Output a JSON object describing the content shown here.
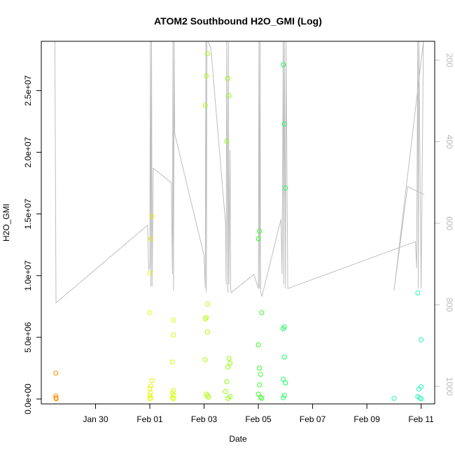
{
  "chart_data": {
    "type": "scatter",
    "title": "ATOM2 Southbound H2O_GMI (Log)",
    "xlabel": "Date",
    "ylabel": "H2O_GMI",
    "xlim": [
      "2017-01-28T00:00",
      "2017-02-11T12:00"
    ],
    "ylim": [
      0,
      29000000
    ],
    "y2lim": [
      1050,
      150
    ],
    "x_ticks": [
      {
        "value": "2017-01-30T00:00",
        "label": "Jan 30"
      },
      {
        "value": "2017-02-01T00:00",
        "label": "Feb 01"
      },
      {
        "value": "2017-02-03T00:00",
        "label": "Feb 03"
      },
      {
        "value": "2017-02-05T00:00",
        "label": "Feb 05"
      },
      {
        "value": "2017-02-07T00:00",
        "label": "Feb 07"
      },
      {
        "value": "2017-02-09T00:00",
        "label": "Feb 09"
      },
      {
        "value": "2017-02-11T00:00",
        "label": "Feb 11"
      }
    ],
    "y_ticks": [
      {
        "value": 0,
        "label": "0.0e+00"
      },
      {
        "value": 5000000,
        "label": "5.0e+06"
      },
      {
        "value": 10000000,
        "label": "1.0e+07"
      },
      {
        "value": 15000000,
        "label": "1.5e+07"
      },
      {
        "value": 20000000,
        "label": "2.0e+07"
      },
      {
        "value": 25000000,
        "label": "2.5e+07"
      }
    ],
    "y2_ticks": [
      {
        "value": 200,
        "label": "200"
      },
      {
        "value": 400,
        "label": "400"
      },
      {
        "value": 600,
        "label": "600"
      },
      {
        "value": 800,
        "label": "800"
      },
      {
        "value": 1000,
        "label": "1000"
      }
    ],
    "colors": {
      "axis": "#000000",
      "pressure_line": "#bebebe",
      "secondary_axis": "#bbbbbb"
    },
    "series": [
      {
        "values": [
          {
            "x": "2017-01-28T12:50",
            "y": 2100000,
            "c": "#ff8c00"
          },
          {
            "x": "2017-01-28T12:50",
            "y": 250000,
            "c": "#ff8c00"
          },
          {
            "x": "2017-01-28T13:00",
            "y": 80000,
            "c": "#ff8c00"
          },
          {
            "x": "2017-01-28T13:10",
            "y": 30000,
            "c": "#ff8c00"
          },
          {
            "x": "2017-02-01T00:00",
            "y": 10200000,
            "c": "#e6f500"
          },
          {
            "x": "2017-02-01T01:00",
            "y": 13000000,
            "c": "#e6f500"
          },
          {
            "x": "2017-02-01T02:00",
            "y": 14800000,
            "c": "#e6f500"
          },
          {
            "x": "2017-02-01T00:00",
            "y": 7000000,
            "c": "#e6f500"
          },
          {
            "x": "2017-02-01T02:00",
            "y": 1500000,
            "c": "#e6f500"
          },
          {
            "x": "2017-02-01T01:00",
            "y": 1050000,
            "c": "#e6f500"
          },
          {
            "x": "2017-02-01T00:00",
            "y": 850000,
            "c": "#e6f500"
          },
          {
            "x": "2017-02-01T00:30",
            "y": 500000,
            "c": "#e6f500"
          },
          {
            "x": "2017-02-01T00:00",
            "y": 300000,
            "c": "#e6f500"
          },
          {
            "x": "2017-02-01T01:00",
            "y": 100000,
            "c": "#e6f500"
          },
          {
            "x": "2017-02-01T00:00",
            "y": 20000,
            "c": "#e6f500"
          },
          {
            "x": "2017-02-01T21:00",
            "y": 6400000,
            "c": "#d4ff00"
          },
          {
            "x": "2017-02-01T21:00",
            "y": 5200000,
            "c": "#d4ff00"
          },
          {
            "x": "2017-02-01T20:00",
            "y": 3000000,
            "c": "#d4ff00"
          },
          {
            "x": "2017-02-01T21:00",
            "y": 700000,
            "c": "#d4ff00"
          },
          {
            "x": "2017-02-01T20:00",
            "y": 500000,
            "c": "#d4ff00"
          },
          {
            "x": "2017-02-01T21:00",
            "y": 300000,
            "c": "#d4ff00"
          },
          {
            "x": "2017-02-01T20:00",
            "y": 100000,
            "c": "#d4ff00"
          },
          {
            "x": "2017-02-01T21:00",
            "y": 30000,
            "c": "#d4ff00"
          },
          {
            "x": "2017-02-03T03:00",
            "y": 28000000,
            "c": "#aaff00"
          },
          {
            "x": "2017-02-03T02:00",
            "y": 26200000,
            "c": "#aaff00"
          },
          {
            "x": "2017-02-03T01:00",
            "y": 23800000,
            "c": "#aaff00"
          },
          {
            "x": "2017-02-03T03:00",
            "y": 7700000,
            "c": "#aaff00"
          },
          {
            "x": "2017-02-03T02:00",
            "y": 6600000,
            "c": "#aaff00"
          },
          {
            "x": "2017-02-03T01:00",
            "y": 6500000,
            "c": "#aaff00"
          },
          {
            "x": "2017-02-03T03:00",
            "y": 5450000,
            "c": "#aaff00"
          },
          {
            "x": "2017-02-03T01:00",
            "y": 3200000,
            "c": "#aaff00"
          },
          {
            "x": "2017-02-03T02:00",
            "y": 400000,
            "c": "#aaff00"
          },
          {
            "x": "2017-02-03T03:00",
            "y": 250000,
            "c": "#aaff00"
          },
          {
            "x": "2017-02-03T04:00",
            "y": 150000,
            "c": "#aaff00"
          },
          {
            "x": "2017-02-03T21:00",
            "y": 26000000,
            "c": "#88ff00"
          },
          {
            "x": "2017-02-03T22:00",
            "y": 24600000,
            "c": "#88ff00"
          },
          {
            "x": "2017-02-03T20:00",
            "y": 20900000,
            "c": "#88ff00"
          },
          {
            "x": "2017-02-03T22:00",
            "y": 3300000,
            "c": "#88ff00"
          },
          {
            "x": "2017-02-03T23:00",
            "y": 2900000,
            "c": "#88ff00"
          },
          {
            "x": "2017-02-03T21:00",
            "y": 2600000,
            "c": "#88ff00"
          },
          {
            "x": "2017-02-03T20:00",
            "y": 1400000,
            "c": "#88ff00"
          },
          {
            "x": "2017-02-03T19:00",
            "y": 600000,
            "c": "#88ff00"
          },
          {
            "x": "2017-02-03T23:00",
            "y": 200000,
            "c": "#88ff00"
          },
          {
            "x": "2017-02-03T21:00",
            "y": 50000,
            "c": "#88ff00"
          },
          {
            "x": "2017-02-05T01:00",
            "y": 13600000,
            "c": "#33ff22"
          },
          {
            "x": "2017-02-05T00:00",
            "y": 13000000,
            "c": "#33ff22"
          },
          {
            "x": "2017-02-05T03:00",
            "y": 7000000,
            "c": "#33ff22"
          },
          {
            "x": "2017-02-05T00:00",
            "y": 4400000,
            "c": "#33ff22"
          },
          {
            "x": "2017-02-05T01:00",
            "y": 2500000,
            "c": "#33ff22"
          },
          {
            "x": "2017-02-05T02:00",
            "y": 2000000,
            "c": "#33ff22"
          },
          {
            "x": "2017-02-05T01:00",
            "y": 1150000,
            "c": "#33ff22"
          },
          {
            "x": "2017-02-05T00:00",
            "y": 400000,
            "c": "#33ff22"
          },
          {
            "x": "2017-02-05T02:00",
            "y": 150000,
            "c": "#33ff22"
          },
          {
            "x": "2017-02-05T03:00",
            "y": 50000,
            "c": "#33ff22"
          },
          {
            "x": "2017-02-05T22:00",
            "y": 27100000,
            "c": "#11ff55"
          },
          {
            "x": "2017-02-05T23:00",
            "y": 22300000,
            "c": "#11ff55"
          },
          {
            "x": "2017-02-06T00:00",
            "y": 17100000,
            "c": "#11ff55"
          },
          {
            "x": "2017-02-05T23:00",
            "y": 5850000,
            "c": "#11ff55"
          },
          {
            "x": "2017-02-05T22:00",
            "y": 5700000,
            "c": "#11ff55"
          },
          {
            "x": "2017-02-05T23:00",
            "y": 3400000,
            "c": "#11ff55"
          },
          {
            "x": "2017-02-05T22:00",
            "y": 1600000,
            "c": "#11ff55"
          },
          {
            "x": "2017-02-06T00:00",
            "y": 1300000,
            "c": "#11ff55"
          },
          {
            "x": "2017-02-05T23:00",
            "y": 300000,
            "c": "#11ff55"
          },
          {
            "x": "2017-02-05T22:00",
            "y": 100000,
            "c": "#11ff55"
          },
          {
            "x": "2017-02-10T00:00",
            "y": 50000,
            "c": "#22f7b8"
          },
          {
            "x": "2017-02-10T21:00",
            "y": 8600000,
            "c": "#22f7b8"
          },
          {
            "x": "2017-02-11T00:00",
            "y": 4800000,
            "c": "#22f7b8"
          },
          {
            "x": "2017-02-11T00:00",
            "y": 1000000,
            "c": "#22f7b8"
          },
          {
            "x": "2017-02-10T22:00",
            "y": 800000,
            "c": "#22f7b8"
          },
          {
            "x": "2017-02-10T21:00",
            "y": 200000,
            "c": "#22f7b8"
          },
          {
            "x": "2017-02-10T23:00",
            "y": 80000,
            "c": "#22f7b8"
          },
          {
            "x": "2017-02-11T00:00",
            "y": 20000,
            "c": "#22f7b8"
          }
        ]
      }
    ],
    "pressure_profile": [
      [
        "2017-01-28T12:00",
        100
      ],
      [
        "2017-01-28T13:00",
        795
      ],
      [
        "2017-01-31T22:00",
        605
      ],
      [
        "2017-01-31T23:00",
        715
      ],
      [
        "2017-02-01T00:00",
        705
      ],
      [
        "2017-02-01T00:30",
        140
      ],
      [
        "2017-02-01T01:00",
        755
      ],
      [
        "2017-02-01T01:30",
        140
      ],
      [
        "2017-02-01T02:00",
        755
      ],
      [
        "2017-02-01T03:00",
        465
      ],
      [
        "2017-02-01T19:00",
        500
      ],
      [
        "2017-02-01T20:00",
        725
      ],
      [
        "2017-02-01T20:30",
        140
      ],
      [
        "2017-02-01T21:00",
        765
      ],
      [
        "2017-02-01T21:30",
        140
      ],
      [
        "2017-02-01T22:00",
        380
      ],
      [
        "2017-02-03T00:00",
        680
      ],
      [
        "2017-02-03T01:00",
        760
      ],
      [
        "2017-02-03T01:30",
        140
      ],
      [
        "2017-02-03T02:00",
        770
      ],
      [
        "2017-02-03T02:30",
        140
      ],
      [
        "2017-02-03T03:30",
        140
      ],
      [
        "2017-02-03T06:00",
        170
      ],
      [
        "2017-02-03T19:00",
        600
      ],
      [
        "2017-02-03T19:30",
        750
      ],
      [
        "2017-02-03T20:00",
        140
      ],
      [
        "2017-02-03T21:00",
        770
      ],
      [
        "2017-02-03T21:30",
        140
      ],
      [
        "2017-02-03T22:00",
        750
      ],
      [
        "2017-02-03T23:00",
        420
      ],
      [
        "2017-02-03T23:30",
        760
      ],
      [
        "2017-02-04T00:00",
        770
      ],
      [
        "2017-02-04T20:00",
        725
      ],
      [
        "2017-02-05T00:00",
        760
      ],
      [
        "2017-02-05T00:30",
        140
      ],
      [
        "2017-02-05T01:00",
        760
      ],
      [
        "2017-02-05T01:30",
        140
      ],
      [
        "2017-02-05T02:00",
        765
      ],
      [
        "2017-02-05T03:00",
        780
      ],
      [
        "2017-02-05T04:00",
        770
      ],
      [
        "2017-02-05T20:00",
        590
      ],
      [
        "2017-02-05T21:00",
        725
      ],
      [
        "2017-02-05T22:00",
        140
      ],
      [
        "2017-02-05T22:30",
        750
      ],
      [
        "2017-02-05T23:00",
        140
      ],
      [
        "2017-02-06T00:00",
        760
      ],
      [
        "2017-02-06T00:30",
        140
      ],
      [
        "2017-02-06T02:00",
        760
      ],
      [
        "2017-02-10T19:00",
        645
      ],
      [
        "2017-02-10T20:00",
        710
      ],
      [
        "2017-02-10T21:00",
        140
      ],
      [
        "2017-02-10T21:30",
        760
      ],
      [
        "2017-02-10T22:00",
        140
      ],
      [
        "2017-02-11T00:00",
        760
      ],
      [
        "2017-02-11T02:00",
        140
      ],
      [
        "2017-02-10T00:00",
        765
      ],
      [
        "2017-02-10T12:00",
        510
      ],
      [
        "2017-02-11T03:00",
        530
      ]
    ]
  }
}
